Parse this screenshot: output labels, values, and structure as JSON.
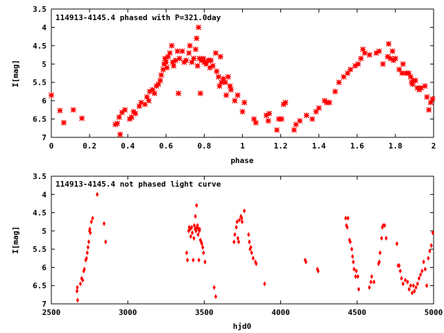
{
  "chart_data": [
    {
      "type": "scatter",
      "title": "114913-4145.4 phased with P=321.0day",
      "xlabel": "phase",
      "ylabel": "I[mag]",
      "xlim": [
        0,
        2
      ],
      "ylim": [
        7,
        3.5
      ],
      "y_inverted": true,
      "xticks": [
        "0",
        "0.2",
        "0.4",
        "0.6",
        "0.8",
        "1",
        "1.2",
        "1.4",
        "1.6",
        "1.8",
        "2"
      ],
      "xtick_values": [
        0,
        0.2,
        0.4,
        0.6,
        0.8,
        1.0,
        1.2,
        1.4,
        1.6,
        1.8,
        2.0
      ],
      "yticks": [
        "3.5",
        "4",
        "4.5",
        "5",
        "5.5",
        "6",
        "6.5",
        "7"
      ],
      "ytick_values": [
        3.5,
        4,
        4.5,
        5,
        5.5,
        6,
        6.5,
        7
      ],
      "marker_color": "#ff0000",
      "grid": false,
      "points": [
        [
          0.0,
          5.85
        ],
        [
          0.045,
          6.27
        ],
        [
          0.065,
          6.6
        ],
        [
          0.115,
          6.25
        ],
        [
          0.16,
          6.48
        ],
        [
          0.335,
          6.65
        ],
        [
          0.345,
          6.62
        ],
        [
          0.355,
          6.45
        ],
        [
          0.36,
          6.92
        ],
        [
          0.37,
          6.32
        ],
        [
          0.385,
          6.25
        ],
        [
          0.41,
          6.5
        ],
        [
          0.42,
          6.45
        ],
        [
          0.43,
          6.3
        ],
        [
          0.44,
          6.35
        ],
        [
          0.46,
          6.15
        ],
        [
          0.47,
          6.05
        ],
        [
          0.49,
          6.1
        ],
        [
          0.5,
          5.9
        ],
        [
          0.51,
          6.0
        ],
        [
          0.515,
          5.75
        ],
        [
          0.53,
          5.7
        ],
        [
          0.54,
          5.8
        ],
        [
          0.55,
          5.6
        ],
        [
          0.56,
          5.55
        ],
        [
          0.57,
          5.45
        ],
        [
          0.575,
          5.3
        ],
        [
          0.585,
          5.15
        ],
        [
          0.59,
          5.0
        ],
        [
          0.595,
          4.85
        ],
        [
          0.6,
          4.95
        ],
        [
          0.605,
          5.1
        ],
        [
          0.61,
          4.8
        ],
        [
          0.62,
          4.7
        ],
        [
          0.63,
          4.5
        ],
        [
          0.635,
          4.95
        ],
        [
          0.64,
          5.05
        ],
        [
          0.65,
          4.9
        ],
        [
          0.66,
          4.65
        ],
        [
          0.665,
          5.8
        ],
        [
          0.67,
          4.85
        ],
        [
          0.685,
          4.65
        ],
        [
          0.695,
          4.95
        ],
        [
          0.705,
          4.9
        ],
        [
          0.72,
          4.7
        ],
        [
          0.725,
          4.5
        ],
        [
          0.735,
          4.95
        ],
        [
          0.745,
          4.85
        ],
        [
          0.755,
          4.6
        ],
        [
          0.76,
          4.3
        ],
        [
          0.765,
          5.05
        ],
        [
          0.77,
          4.0
        ],
        [
          0.775,
          4.85
        ],
        [
          0.78,
          5.8
        ],
        [
          0.785,
          4.9
        ],
        [
          0.795,
          4.85
        ],
        [
          0.8,
          4.95
        ],
        [
          0.81,
          5.0
        ],
        [
          0.82,
          4.9
        ],
        [
          0.83,
          5.1
        ],
        [
          0.835,
          4.9
        ],
        [
          0.845,
          5.05
        ],
        [
          0.86,
          4.7
        ],
        [
          0.865,
          5.2
        ],
        [
          0.875,
          5.35
        ],
        [
          0.88,
          5.6
        ],
        [
          0.885,
          4.8
        ],
        [
          0.89,
          5.5
        ],
        [
          0.9,
          5.4
        ],
        [
          0.91,
          5.5
        ],
        [
          0.915,
          5.85
        ],
        [
          0.925,
          5.35
        ],
        [
          0.935,
          5.6
        ],
        [
          0.94,
          5.7
        ],
        [
          0.96,
          6.0
        ],
        [
          0.975,
          5.85
        ],
        [
          1.0,
          6.3
        ],
        [
          1.01,
          6.05
        ],
        [
          1.06,
          6.5
        ],
        [
          1.07,
          6.6
        ],
        [
          1.125,
          6.4
        ],
        [
          1.135,
          6.55
        ],
        [
          1.14,
          6.35
        ],
        [
          1.18,
          6.8
        ],
        [
          1.19,
          6.5
        ],
        [
          1.205,
          6.5
        ],
        [
          1.215,
          6.1
        ],
        [
          1.225,
          6.05
        ],
        [
          1.27,
          6.8
        ],
        [
          1.28,
          6.65
        ],
        [
          1.3,
          6.55
        ],
        [
          1.335,
          6.4
        ],
        [
          1.365,
          6.5
        ],
        [
          1.385,
          6.3
        ],
        [
          1.4,
          6.2
        ],
        [
          1.43,
          6.0
        ],
        [
          1.44,
          6.05
        ],
        [
          1.455,
          6.05
        ],
        [
          1.485,
          5.75
        ],
        [
          1.505,
          5.5
        ],
        [
          1.53,
          5.35
        ],
        [
          1.55,
          5.25
        ],
        [
          1.565,
          5.15
        ],
        [
          1.59,
          5.05
        ],
        [
          1.605,
          5.0
        ],
        [
          1.62,
          4.85
        ],
        [
          1.63,
          4.6
        ],
        [
          1.64,
          4.7
        ],
        [
          1.665,
          4.75
        ],
        [
          1.7,
          4.7
        ],
        [
          1.715,
          4.65
        ],
        [
          1.735,
          5.0
        ],
        [
          1.76,
          4.8
        ],
        [
          1.765,
          4.45
        ],
        [
          1.775,
          4.85
        ],
        [
          1.785,
          4.65
        ],
        [
          1.79,
          4.9
        ],
        [
          1.8,
          4.85
        ],
        [
          1.82,
          5.15
        ],
        [
          1.835,
          5.25
        ],
        [
          1.84,
          5.0
        ],
        [
          1.855,
          5.25
        ],
        [
          1.87,
          5.25
        ],
        [
          1.88,
          5.35
        ],
        [
          1.885,
          5.5
        ],
        [
          1.89,
          5.55
        ],
        [
          1.895,
          5.45
        ],
        [
          1.905,
          5.45
        ],
        [
          1.915,
          5.65
        ],
        [
          1.925,
          5.7
        ],
        [
          1.935,
          5.65
        ],
        [
          1.955,
          5.6
        ],
        [
          1.965,
          5.9
        ],
        [
          1.975,
          6.25
        ],
        [
          1.985,
          6.05
        ],
        [
          1.995,
          5.95
        ]
      ]
    },
    {
      "type": "scatter",
      "title": "114913-4145.4 not phased light curve",
      "xlabel": "hjd0",
      "ylabel": "I[mag]",
      "xlim": [
        2500,
        5000
      ],
      "ylim": [
        7,
        3.5
      ],
      "y_inverted": true,
      "xticks": [
        "2500",
        "3000",
        "3500",
        "4000",
        "4500",
        "5000"
      ],
      "xtick_values": [
        2500,
        3000,
        3500,
        4000,
        4500,
        5000
      ],
      "yticks": [
        "3.5",
        "4",
        "4.5",
        "5",
        "5.5",
        "6",
        "6.5",
        "7"
      ],
      "ytick_values": [
        3.5,
        4,
        4.5,
        5,
        5.5,
        6,
        6.5,
        7
      ],
      "marker_color": "#ff0000",
      "grid": false,
      "points": [
        [
          2668,
          6.65
        ],
        [
          2670,
          6.55
        ],
        [
          2672,
          6.9
        ],
        [
          2690,
          6.45
        ],
        [
          2698,
          6.3
        ],
        [
          2705,
          6.35
        ],
        [
          2712,
          6.1
        ],
        [
          2716,
          6.05
        ],
        [
          2725,
          5.8
        ],
        [
          2730,
          5.75
        ],
        [
          2735,
          5.6
        ],
        [
          2740,
          5.45
        ],
        [
          2745,
          5.3
        ],
        [
          2750,
          5.0
        ],
        [
          2752,
          4.95
        ],
        [
          2755,
          5.05
        ],
        [
          2762,
          4.75
        ],
        [
          2770,
          4.65
        ],
        [
          2800,
          4.0
        ],
        [
          2845,
          4.8
        ],
        [
          2855,
          5.3
        ],
        [
          3385,
          5.6
        ],
        [
          3390,
          5.8
        ],
        [
          3398,
          5.0
        ],
        [
          3402,
          4.9
        ],
        [
          3408,
          4.95
        ],
        [
          3412,
          5.15
        ],
        [
          3418,
          4.9
        ],
        [
          3422,
          5.05
        ],
        [
          3428,
          5.8
        ],
        [
          3432,
          5.2
        ],
        [
          3435,
          4.85
        ],
        [
          3440,
          4.95
        ],
        [
          3442,
          4.6
        ],
        [
          3446,
          5.0
        ],
        [
          3450,
          4.3
        ],
        [
          3452,
          4.9
        ],
        [
          3456,
          4.85
        ],
        [
          3460,
          5.1
        ],
        [
          3462,
          4.95
        ],
        [
          3465,
          5.8
        ],
        [
          3468,
          5.0
        ],
        [
          3470,
          4.95
        ],
        [
          3475,
          5.25
        ],
        [
          3480,
          5.3
        ],
        [
          3484,
          5.35
        ],
        [
          3490,
          5.45
        ],
        [
          3495,
          5.6
        ],
        [
          3505,
          5.85
        ],
        [
          3565,
          6.55
        ],
        [
          3575,
          6.8
        ],
        [
          3695,
          5.3
        ],
        [
          3700,
          5.1
        ],
        [
          3710,
          4.9
        ],
        [
          3715,
          4.75
        ],
        [
          3720,
          5.2
        ],
        [
          3725,
          5.3
        ],
        [
          3730,
          4.7
        ],
        [
          3740,
          4.6
        ],
        [
          3745,
          4.65
        ],
        [
          3748,
          4.75
        ],
        [
          3762,
          4.45
        ],
        [
          3790,
          5.1
        ],
        [
          3795,
          5.3
        ],
        [
          3800,
          5.5
        ],
        [
          3805,
          5.45
        ],
        [
          3810,
          5.6
        ],
        [
          3820,
          5.75
        ],
        [
          3835,
          5.85
        ],
        [
          3840,
          5.9
        ],
        [
          3895,
          6.45
        ],
        [
          4160,
          5.8
        ],
        [
          4165,
          5.85
        ],
        [
          4240,
          6.05
        ],
        [
          4245,
          6.1
        ],
        [
          4425,
          4.65
        ],
        [
          4430,
          4.85
        ],
        [
          4435,
          4.9
        ],
        [
          4440,
          4.65
        ],
        [
          4450,
          5.25
        ],
        [
          4455,
          5.3
        ],
        [
          4465,
          5.5
        ],
        [
          4470,
          5.7
        ],
        [
          4475,
          5.85
        ],
        [
          4480,
          6.05
        ],
        [
          4490,
          6.25
        ],
        [
          4495,
          6.1
        ],
        [
          4505,
          6.25
        ],
        [
          4510,
          6.6
        ],
        [
          4580,
          6.55
        ],
        [
          4590,
          6.4
        ],
        [
          4595,
          6.25
        ],
        [
          4610,
          6.4
        ],
        [
          4640,
          5.9
        ],
        [
          4645,
          5.85
        ],
        [
          4650,
          5.6
        ],
        [
          4660,
          5.2
        ],
        [
          4665,
          4.9
        ],
        [
          4670,
          4.85
        ],
        [
          4680,
          4.85
        ],
        [
          4690,
          5.2
        ],
        [
          4760,
          5.35
        ],
        [
          4768,
          5.95
        ],
        [
          4775,
          5.95
        ],
        [
          4782,
          6.1
        ],
        [
          4790,
          6.3
        ],
        [
          4800,
          6.45
        ],
        [
          4815,
          6.35
        ],
        [
          4830,
          6.4
        ],
        [
          4840,
          6.6
        ],
        [
          4850,
          6.5
        ],
        [
          4860,
          6.7
        ],
        [
          4868,
          6.5
        ],
        [
          4875,
          6.65
        ],
        [
          4885,
          6.55
        ],
        [
          4895,
          6.45
        ],
        [
          4905,
          6.3
        ],
        [
          4915,
          6.2
        ],
        [
          4925,
          6.1
        ],
        [
          4935,
          5.85
        ],
        [
          4945,
          6.05
        ],
        [
          4955,
          6.5
        ],
        [
          4965,
          5.75
        ],
        [
          4975,
          5.55
        ],
        [
          4985,
          5.4
        ],
        [
          4995,
          5.05
        ]
      ]
    }
  ]
}
